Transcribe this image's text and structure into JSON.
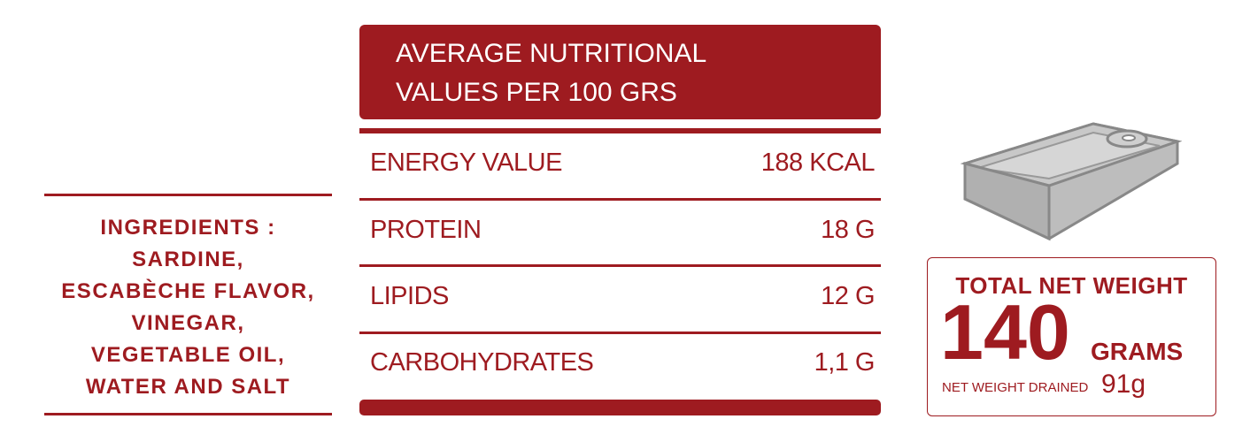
{
  "ingredients": {
    "title": "INGREDIENTS :",
    "items": [
      "SARDINE,",
      "ESCABÈCHE FLAVOR,",
      "VINEGAR,",
      "VEGETABLE OIL,",
      "WATER AND SALT"
    ]
  },
  "nutrition": {
    "header": [
      "AVERAGE NUTRITIONAL",
      "VALUES PER 100 GRS"
    ],
    "rows": [
      [
        "ENERGY VALUE",
        "188 KCAL"
      ],
      [
        "PROTEIN",
        "18 G"
      ],
      [
        "LIPIDS",
        "12 G"
      ],
      [
        "CARBOHYDRATES",
        "1,1 G"
      ]
    ]
  },
  "weight": {
    "label": "TOTAL NET WEIGHT",
    "value": "140",
    "unit": "GRAMS",
    "drained_label": "NET WEIGHT DRAINED",
    "drained_value": "91g"
  }
}
